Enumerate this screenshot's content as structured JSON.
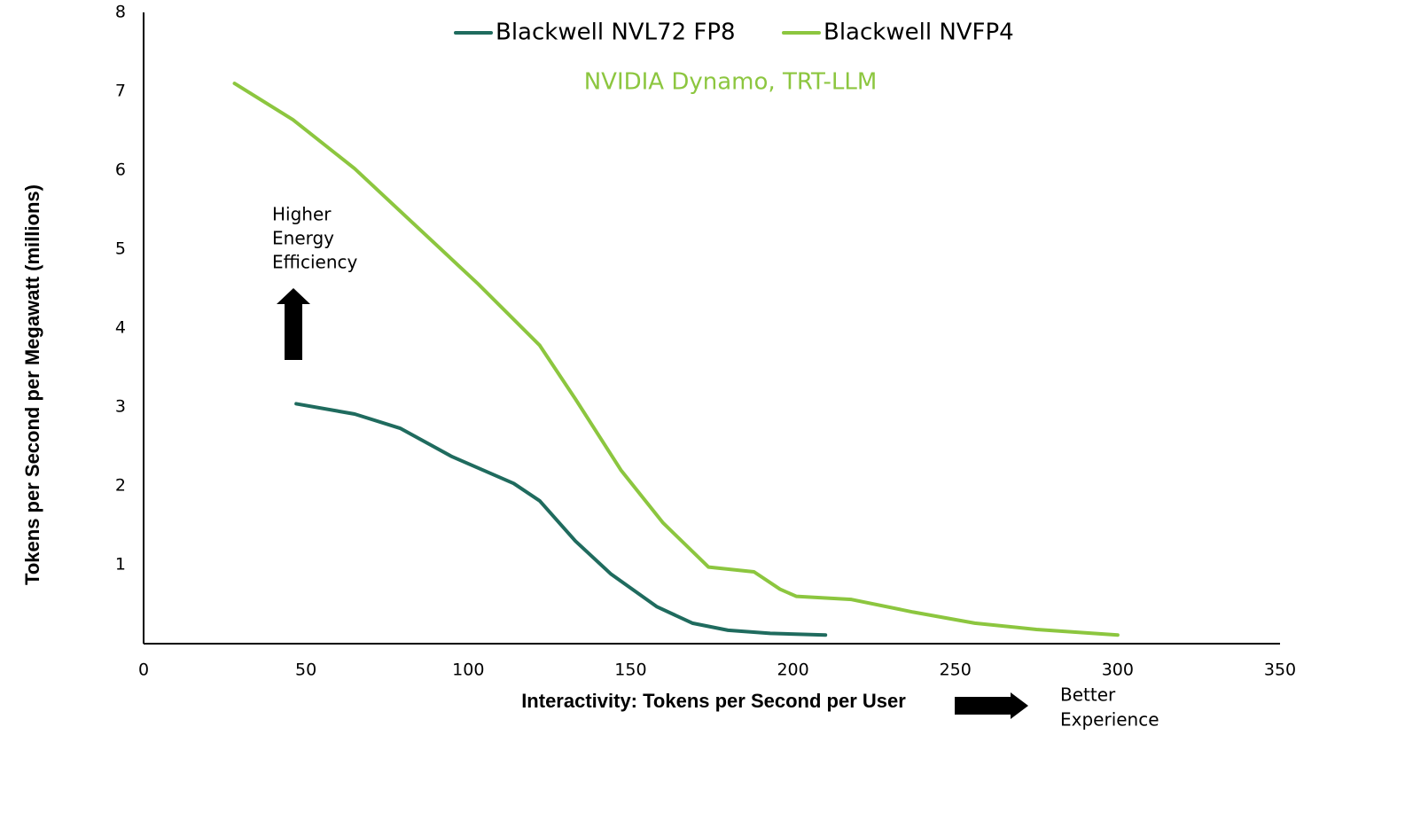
{
  "chart_data": {
    "type": "line",
    "subtitle": "NVIDIA Dynamo, TRT-LLM",
    "subtitle_color": "#8cc63f",
    "x_label": "Interactivity: Tokens per Second per User",
    "y_label": "Tokens per Second per Megawatt (millions)",
    "annotations": [
      [
        "Higher",
        "Energy",
        "Efficiency"
      ],
      [
        "Better",
        "Experience"
      ]
    ],
    "xlim": [
      0,
      350
    ],
    "xticks": [
      0,
      50,
      100,
      150,
      200,
      250,
      300,
      350
    ],
    "ylim": [
      0,
      8
    ],
    "yticks": [
      1,
      2,
      3,
      4,
      5,
      6,
      7,
      8
    ],
    "series": [
      {
        "name": "Blackwell NVL72 FP8",
        "color": "#1f6b5e",
        "x": [
          47,
          65,
          79,
          95,
          114,
          122,
          133,
          144,
          158,
          169,
          180,
          193,
          210
        ],
        "values": [
          3.04,
          2.91,
          2.73,
          2.37,
          2.03,
          1.81,
          1.3,
          0.88,
          0.47,
          0.26,
          0.17,
          0.13,
          0.11
        ]
      },
      {
        "name": "Blackwell NVFP4",
        "color": "#8cc63f",
        "x": [
          28,
          46,
          65,
          84,
          103,
          122,
          133,
          147,
          160,
          174,
          188,
          196,
          201,
          218,
          237,
          256,
          275,
          300
        ],
        "values": [
          7.1,
          6.64,
          6.02,
          5.29,
          4.56,
          3.78,
          3.1,
          2.2,
          1.53,
          0.97,
          0.91,
          0.69,
          0.6,
          0.56,
          0.4,
          0.26,
          0.18,
          0.11
        ]
      }
    ]
  }
}
